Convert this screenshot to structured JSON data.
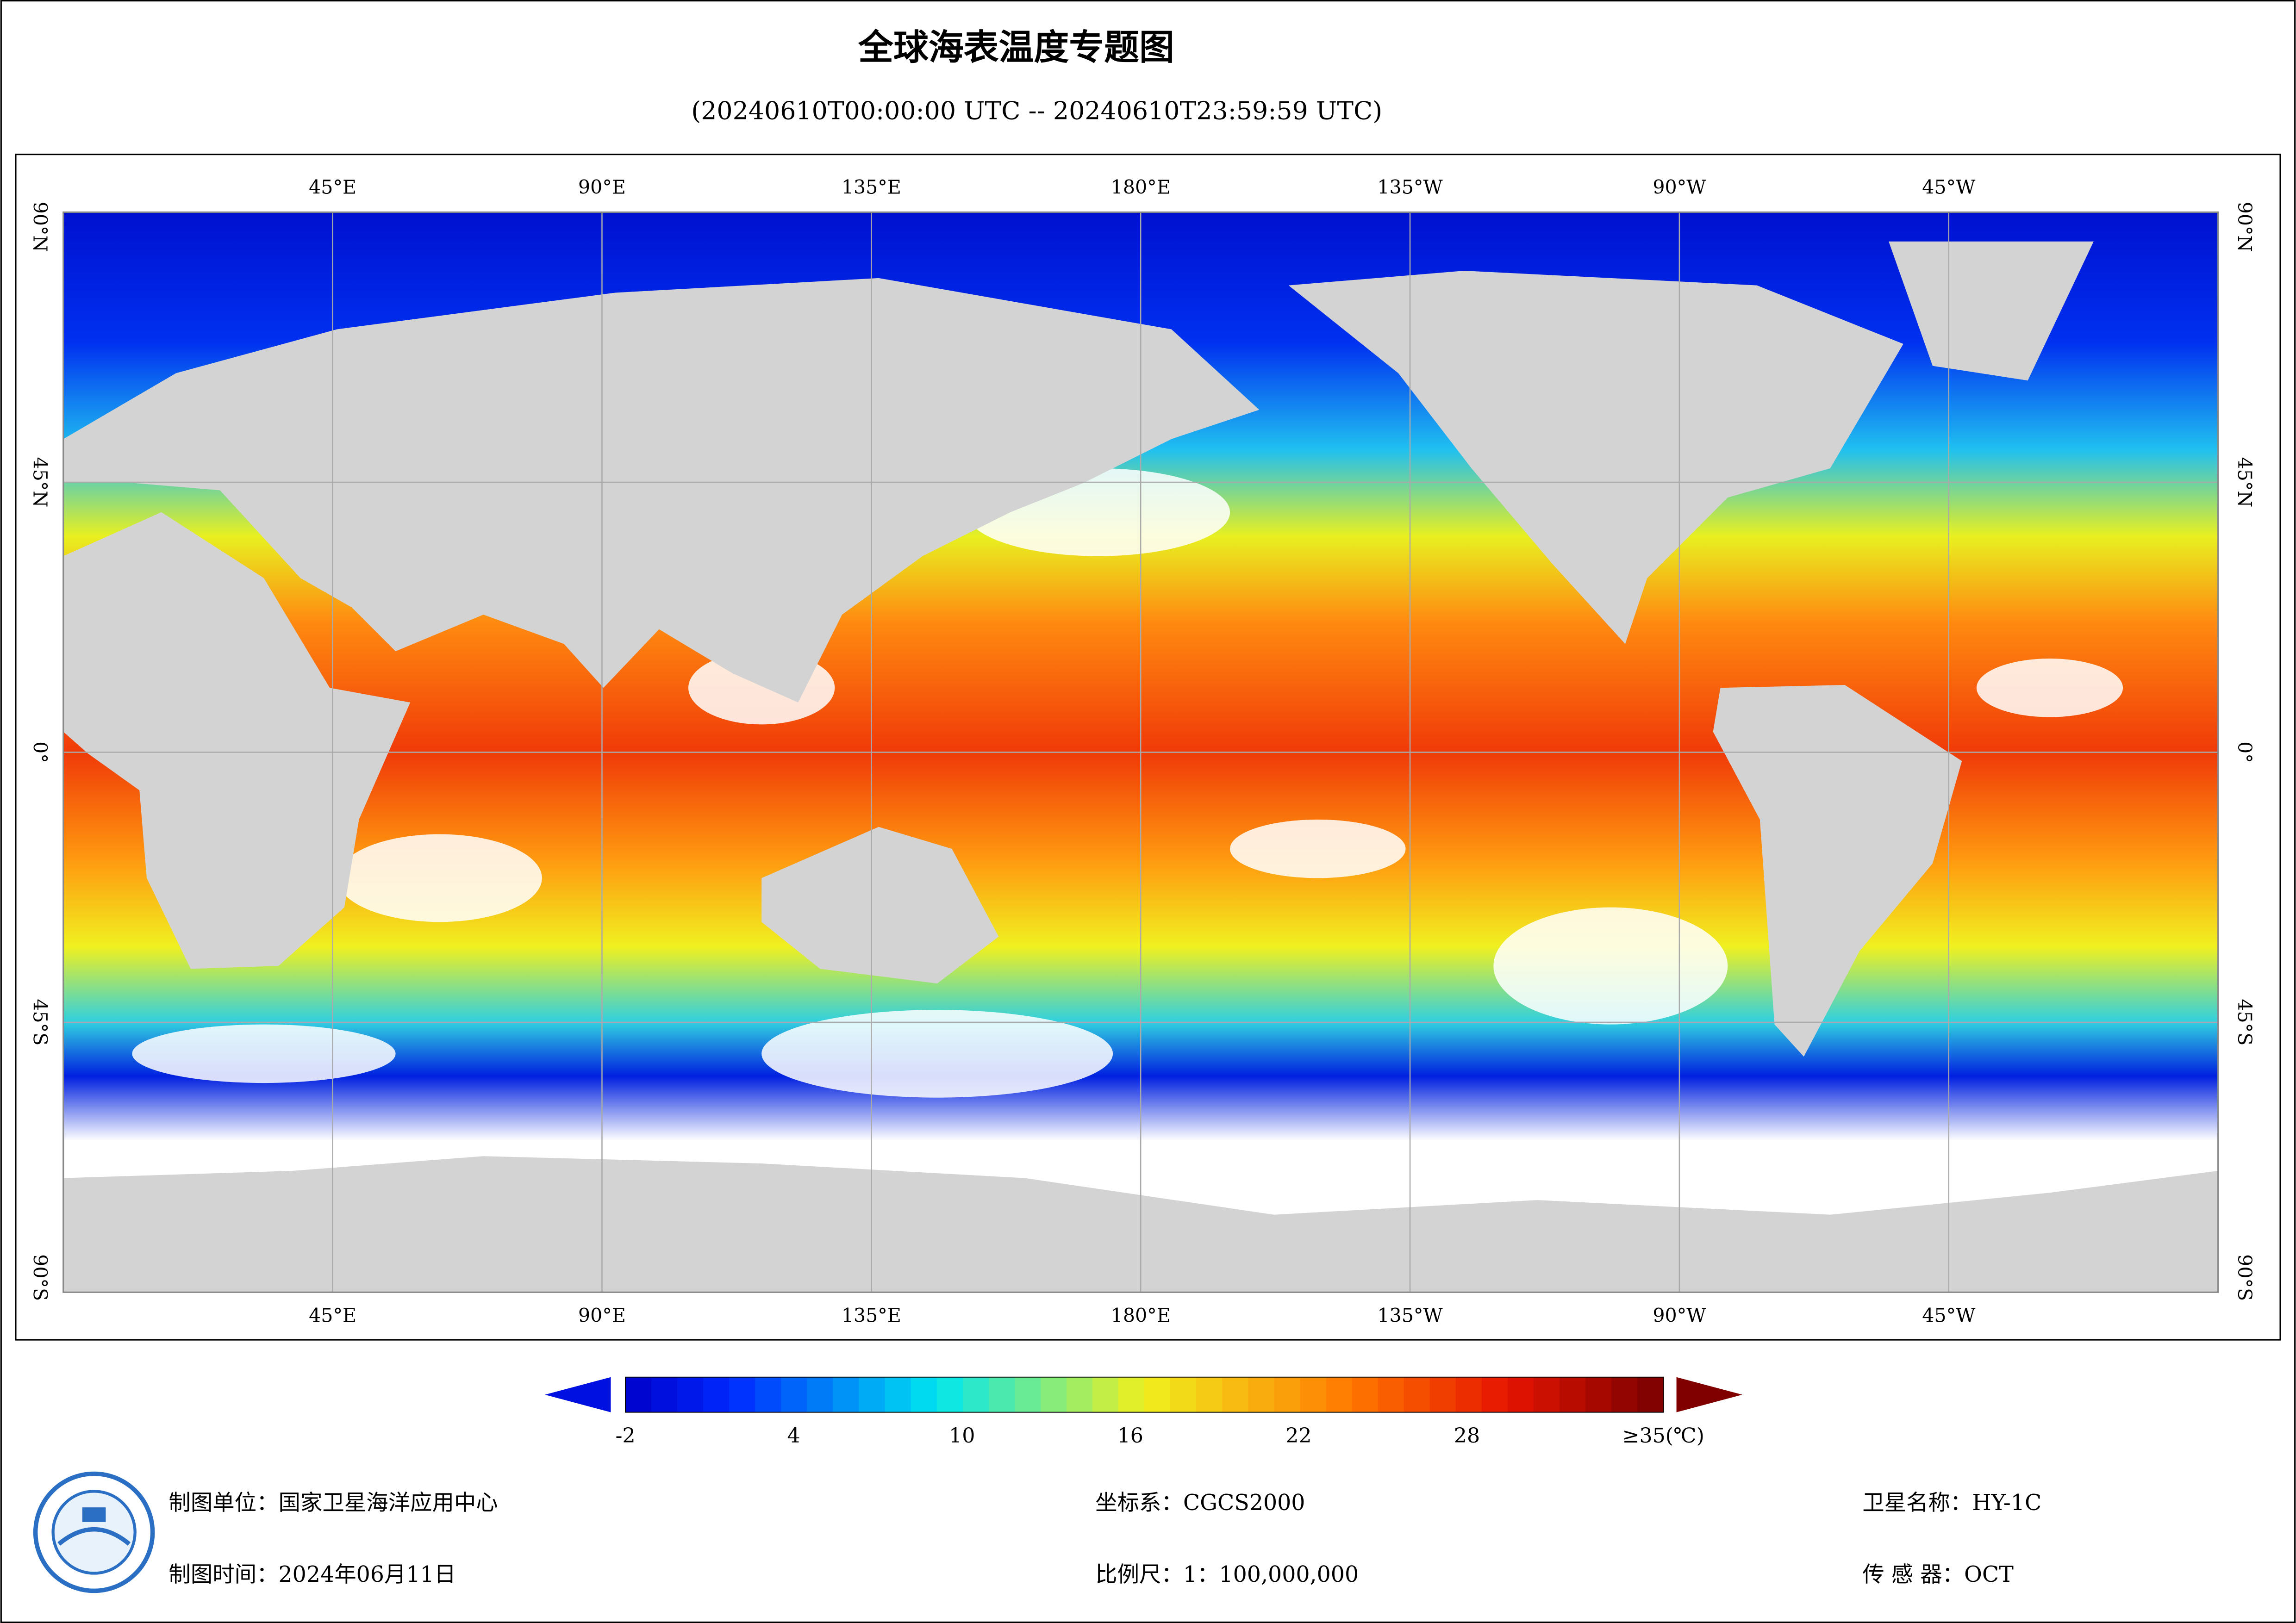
{
  "header": {
    "title": "全球海表温度专题图",
    "subtitle": "(20240610T00:00:00 UTC -- 20240610T23:59:59 UTC)"
  },
  "map": {
    "lon_ticks": [
      {
        "value": 45,
        "label": "45°E"
      },
      {
        "value": 90,
        "label": "90°E"
      },
      {
        "value": 135,
        "label": "135°E"
      },
      {
        "value": 180,
        "label": "180°E"
      },
      {
        "value": -135,
        "label": "135°W"
      },
      {
        "value": -90,
        "label": "90°W"
      },
      {
        "value": -45,
        "label": "45°W"
      }
    ],
    "lat_ticks": [
      {
        "value": 90,
        "label": "90°N"
      },
      {
        "value": 45,
        "label": "45°N"
      },
      {
        "value": 0,
        "label": "0°"
      },
      {
        "value": -45,
        "label": "45°S"
      },
      {
        "value": -90,
        "label": "90°S"
      }
    ]
  },
  "colorbar": {
    "range": [
      -2,
      35
    ],
    "ticks": [
      -2,
      4,
      10,
      16,
      22,
      28,
      {
        "value": 35,
        "label": "≥35(℃)"
      }
    ]
  },
  "footer": {
    "unit": "制图单位：国家卫星海洋应用中心",
    "date": "制图时间：2024年06月11日",
    "crs": "坐标系：CGCS2000",
    "scale": "比例尺：1：100,000,000",
    "satellite": "卫星名称：HY-1C",
    "sensor": "传 感 器：OCT"
  }
}
